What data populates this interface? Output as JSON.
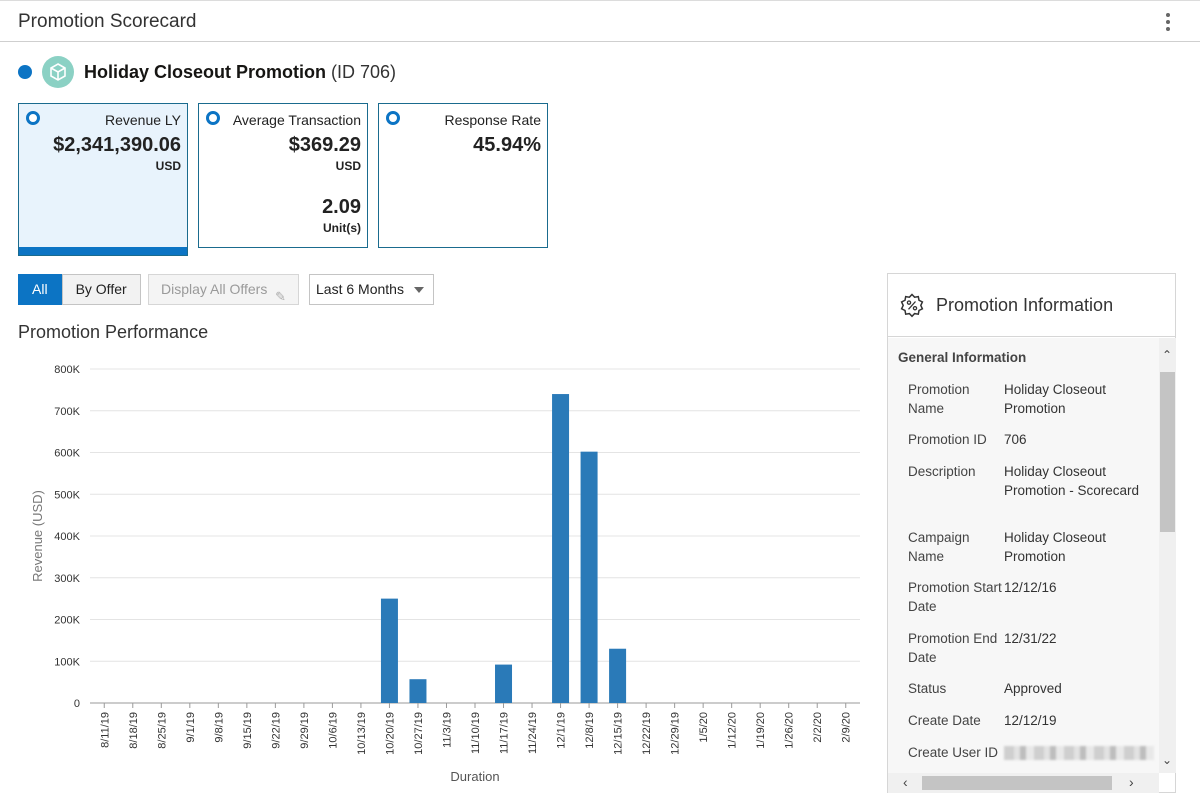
{
  "header": {
    "title": "Promotion Scorecard",
    "menu_icon": "kebab-menu-icon"
  },
  "promotion": {
    "name": "Holiday Closeout Promotion",
    "id_text": "(ID 706)",
    "status_color": "#0c74c4",
    "icon": "cube-icon"
  },
  "tiles": [
    {
      "label": "Revenue LY",
      "value": "$2,341,390.06",
      "unit": "USD",
      "selected": true
    },
    {
      "label": "Average Transaction",
      "value": "$369.29",
      "unit": "USD",
      "value2": "2.09",
      "unit2": "Unit(s)",
      "selected": false
    },
    {
      "label": "Response Rate",
      "value": "45.94%",
      "selected": false
    }
  ],
  "toolbar": {
    "all_label": "All",
    "by_offer_label": "By Offer",
    "display_all_offers_label": "Display All Offers",
    "period_select": "Last 6 Months"
  },
  "section_title": "Promotion Performance",
  "chart_data": {
    "type": "bar",
    "xlabel": "Duration",
    "ylabel": "Revenue (USD)",
    "ylim": [
      0,
      800000
    ],
    "ytick_values": [
      0,
      100000,
      200000,
      300000,
      400000,
      500000,
      600000,
      700000,
      800000
    ],
    "ytick_labels": [
      "0",
      "100K",
      "200K",
      "300K",
      "400K",
      "500K",
      "600K",
      "700K",
      "800K"
    ],
    "grid": true,
    "color": "#2a7ab8",
    "categories": [
      "8/11/19",
      "8/18/19",
      "8/25/19",
      "9/1/19",
      "9/8/19",
      "9/15/19",
      "9/22/19",
      "9/29/19",
      "10/6/19",
      "10/13/19",
      "10/20/19",
      "10/27/19",
      "11/3/19",
      "11/10/19",
      "11/17/19",
      "11/24/19",
      "12/1/19",
      "12/8/19",
      "12/15/19",
      "12/22/19",
      "12/29/19",
      "1/5/20",
      "1/12/20",
      "1/19/20",
      "1/26/20",
      "2/2/20",
      "2/9/20"
    ],
    "values": [
      0,
      0,
      0,
      0,
      0,
      0,
      0,
      0,
      0,
      0,
      250000,
      57000,
      0,
      0,
      92000,
      0,
      740000,
      602000,
      130000,
      0,
      0,
      0,
      0,
      0,
      0,
      0,
      0
    ]
  },
  "info_panel": {
    "title": "Promotion Information",
    "icon": "percent-badge-icon",
    "section": "General Information",
    "rows": [
      {
        "label": "Promotion Name",
        "value": "Holiday Closeout Promotion"
      },
      {
        "label": "Promotion ID",
        "value": "706"
      },
      {
        "label": "Description",
        "value": "Holiday Closeout Promotion - Scorecard"
      },
      {
        "label": "Campaign Name",
        "value": "Holiday Closeout Promotion"
      },
      {
        "label": "Promotion Start Date",
        "value": "12/12/16"
      },
      {
        "label": "Promotion End Date",
        "value": "12/31/22"
      },
      {
        "label": "Status",
        "value": "Approved"
      },
      {
        "label": "Create Date",
        "value": "12/12/19"
      },
      {
        "label": "Create User ID",
        "value": ""
      }
    ]
  }
}
